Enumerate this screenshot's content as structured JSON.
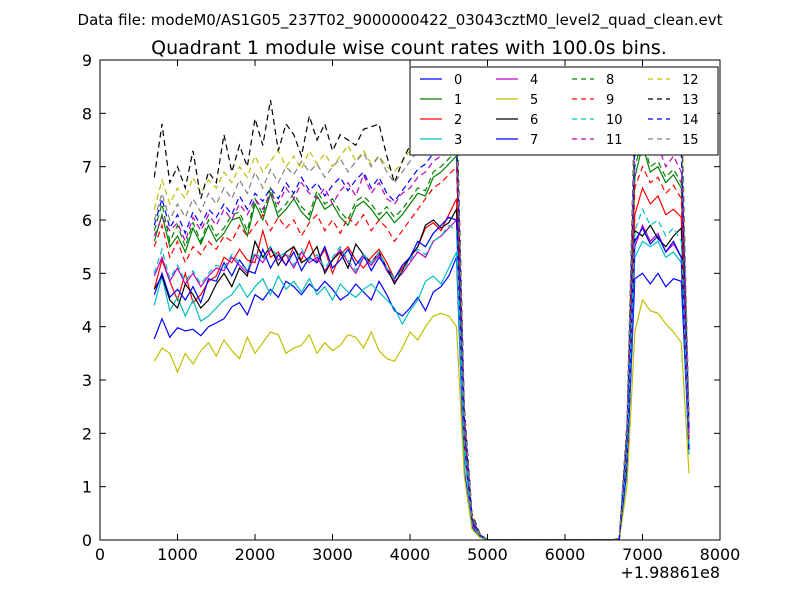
{
  "window": {
    "suptitle": "Data file: modeM0/AS1G05_237T02_9000000422_03043cztM0_level2_quad_clean.evt"
  },
  "chart_data": {
    "type": "line",
    "title": "Quadrant 1 module wise count rates with 100.0s bins.",
    "xlabel": "",
    "ylabel": "",
    "x_offset_label": "+1.98861e8",
    "xlim": [
      0,
      8000
    ],
    "ylim": [
      0,
      9
    ],
    "xticks": [
      0,
      1000,
      2000,
      3000,
      4000,
      5000,
      6000,
      7000,
      8000
    ],
    "yticks": [
      0,
      1,
      2,
      3,
      4,
      5,
      6,
      7,
      8,
      9
    ],
    "grid": false,
    "legend_position": "top-right",
    "x": [
      700,
      800,
      900,
      1000,
      1100,
      1200,
      1300,
      1400,
      1500,
      1600,
      1700,
      1800,
      1900,
      2000,
      2100,
      2200,
      2300,
      2400,
      2500,
      2600,
      2700,
      2800,
      2900,
      3000,
      3100,
      3200,
      3300,
      3400,
      3500,
      3600,
      3700,
      3800,
      3900,
      4000,
      4100,
      4200,
      4300,
      4400,
      4500,
      4600,
      4700,
      4800,
      4900,
      5000,
      5200,
      5400,
      5600,
      5800,
      6000,
      6200,
      6400,
      6600,
      6700,
      6800,
      6900,
      7000,
      7100,
      7200,
      7300,
      7400,
      7500,
      7600
    ],
    "series": [
      {
        "name": "0",
        "color": "#0000ff",
        "dash": "solid",
        "values": [
          3.77,
          4.15,
          3.8,
          3.98,
          3.92,
          3.95,
          3.83,
          4.0,
          4.07,
          4.15,
          4.37,
          4.45,
          4.22,
          4.6,
          4.5,
          4.7,
          4.55,
          4.85,
          4.75,
          4.6,
          4.8,
          4.67,
          4.85,
          4.7,
          4.5,
          4.6,
          4.8,
          4.65,
          4.5,
          4.85,
          4.6,
          4.3,
          4.2,
          4.35,
          4.55,
          4.3,
          4.65,
          4.75,
          4.95,
          5.3,
          1.3,
          0.25,
          0.05,
          0.0,
          0.0,
          0.0,
          0.0,
          0.0,
          0.0,
          0.0,
          0.0,
          0.0,
          0.02,
          1.3,
          4.9,
          5.0,
          4.8,
          5.0,
          4.75,
          4.9,
          4.85,
          1.7
        ]
      },
      {
        "name": "1",
        "color": "#008000",
        "dash": "solid",
        "values": [
          5.6,
          6.1,
          5.5,
          5.7,
          5.4,
          5.85,
          5.55,
          5.9,
          5.6,
          5.75,
          6.0,
          6.05,
          5.7,
          6.3,
          6.0,
          6.5,
          6.05,
          6.2,
          6.4,
          6.15,
          6.0,
          6.45,
          6.2,
          6.3,
          6.05,
          5.9,
          6.25,
          6.35,
          6.2,
          6.0,
          6.15,
          5.95,
          6.1,
          6.3,
          6.5,
          6.45,
          6.8,
          6.9,
          7.05,
          7.2,
          2.0,
          0.4,
          0.1,
          0.0,
          0.0,
          0.0,
          0.0,
          0.0,
          0.0,
          0.0,
          0.0,
          0.0,
          0.03,
          1.8,
          6.8,
          7.4,
          6.9,
          7.0,
          6.7,
          6.85,
          6.6,
          1.9
        ]
      },
      {
        "name": "2",
        "color": "#ff0000",
        "dash": "solid",
        "values": [
          4.7,
          5.25,
          4.85,
          4.5,
          5.0,
          4.45,
          4.6,
          4.85,
          4.95,
          5.3,
          5.2,
          5.45,
          5.25,
          5.2,
          5.8,
          5.3,
          5.4,
          5.15,
          5.5,
          5.25,
          5.6,
          5.2,
          5.45,
          5.0,
          5.35,
          5.5,
          5.25,
          5.1,
          5.3,
          5.45,
          5.2,
          4.9,
          5.1,
          5.3,
          5.5,
          5.85,
          5.95,
          5.8,
          6.1,
          6.4,
          1.9,
          0.35,
          0.08,
          0.0,
          0.0,
          0.0,
          0.0,
          0.0,
          0.0,
          0.0,
          0.0,
          0.0,
          0.02,
          1.6,
          6.1,
          6.6,
          6.3,
          6.45,
          6.1,
          6.2,
          6.05,
          1.8
        ]
      },
      {
        "name": "3",
        "color": "#00bfbf",
        "dash": "solid",
        "values": [
          4.4,
          4.95,
          4.3,
          4.55,
          4.2,
          4.5,
          4.1,
          4.2,
          4.35,
          4.5,
          4.6,
          4.8,
          4.55,
          4.75,
          4.9,
          4.6,
          4.95,
          4.7,
          4.85,
          4.65,
          4.9,
          4.6,
          4.75,
          4.5,
          4.8,
          4.65,
          4.55,
          4.7,
          4.8,
          4.65,
          4.5,
          4.35,
          4.05,
          4.3,
          4.5,
          4.85,
          4.95,
          4.8,
          5.1,
          5.4,
          1.6,
          0.3,
          0.06,
          0.0,
          0.0,
          0.0,
          0.0,
          0.0,
          0.0,
          0.0,
          0.0,
          0.0,
          0.02,
          1.4,
          5.3,
          5.6,
          5.5,
          5.6,
          5.3,
          5.4,
          5.2,
          1.6
        ]
      },
      {
        "name": "4",
        "color": "#bf00bf",
        "dash": "solid",
        "values": [
          4.95,
          5.3,
          4.85,
          5.1,
          4.8,
          5.0,
          4.75,
          4.95,
          5.1,
          5.05,
          5.3,
          5.15,
          5.0,
          5.35,
          5.2,
          5.45,
          5.25,
          5.35,
          5.1,
          5.4,
          5.2,
          5.3,
          5.05,
          5.25,
          5.45,
          5.2,
          5.0,
          5.3,
          5.15,
          5.35,
          5.05,
          4.85,
          5.0,
          5.2,
          5.4,
          5.3,
          5.6,
          5.7,
          5.85,
          6.0,
          1.8,
          0.3,
          0.07,
          0.0,
          0.0,
          0.0,
          0.0,
          0.0,
          0.0,
          0.0,
          0.0,
          0.0,
          0.02,
          1.5,
          5.5,
          5.9,
          5.6,
          5.75,
          5.4,
          5.55,
          5.3,
          1.75
        ]
      },
      {
        "name": "5",
        "color": "#bfbf00",
        "dash": "solid",
        "values": [
          3.35,
          3.6,
          3.5,
          3.15,
          3.5,
          3.3,
          3.55,
          3.7,
          3.45,
          3.75,
          3.55,
          3.4,
          3.8,
          3.5,
          3.7,
          3.9,
          3.85,
          3.5,
          3.6,
          3.65,
          3.85,
          3.5,
          3.7,
          3.55,
          3.65,
          3.85,
          3.8,
          3.6,
          3.9,
          3.55,
          3.4,
          3.35,
          3.6,
          3.9,
          3.75,
          4.0,
          4.2,
          4.25,
          4.2,
          4.0,
          1.2,
          0.2,
          0.05,
          0.0,
          0.0,
          0.0,
          0.0,
          0.0,
          0.0,
          0.0,
          0.0,
          0.0,
          0.02,
          1.0,
          3.9,
          4.5,
          4.3,
          4.25,
          4.05,
          3.9,
          3.7,
          1.25
        ]
      },
      {
        "name": "6",
        "color": "#000000",
        "dash": "solid",
        "values": [
          4.7,
          4.95,
          4.5,
          4.35,
          4.8,
          4.6,
          4.35,
          4.5,
          4.8,
          5.0,
          4.75,
          5.1,
          4.95,
          5.6,
          5.3,
          5.5,
          5.15,
          5.4,
          5.5,
          5.2,
          5.3,
          5.5,
          5.0,
          5.25,
          5.4,
          5.1,
          5.55,
          5.35,
          5.2,
          5.4,
          5.1,
          4.8,
          5.05,
          5.3,
          5.5,
          5.9,
          6.0,
          5.85,
          5.95,
          6.2,
          1.9,
          0.33,
          0.08,
          0.0,
          0.0,
          0.0,
          0.0,
          0.0,
          0.0,
          0.0,
          0.0,
          0.0,
          0.02,
          1.5,
          5.8,
          5.7,
          5.9,
          5.65,
          5.5,
          5.7,
          5.85,
          1.7
        ]
      },
      {
        "name": "7",
        "color": "#0000ff",
        "dash": "solid",
        "values": [
          4.6,
          5.0,
          4.55,
          4.7,
          4.5,
          4.75,
          4.45,
          4.9,
          4.85,
          5.2,
          4.95,
          5.25,
          5.05,
          5.0,
          5.45,
          5.1,
          5.35,
          5.15,
          5.4,
          5.05,
          5.3,
          5.2,
          5.5,
          5.1,
          5.25,
          5.45,
          5.15,
          5.35,
          5.05,
          5.3,
          5.1,
          4.9,
          5.15,
          5.3,
          5.6,
          5.5,
          5.75,
          5.9,
          6.05,
          6.0,
          1.9,
          0.33,
          0.08,
          0.0,
          0.0,
          0.0,
          0.0,
          0.0,
          0.0,
          0.0,
          0.0,
          0.0,
          0.02,
          1.5,
          5.6,
          5.85,
          5.55,
          5.7,
          5.4,
          5.6,
          5.3,
          1.7
        ]
      },
      {
        "name": "8",
        "color": "#008000",
        "dash": "dashed",
        "values": [
          5.8,
          6.3,
          5.6,
          5.9,
          5.5,
          5.95,
          5.6,
          6.0,
          5.7,
          5.85,
          6.1,
          6.15,
          5.8,
          6.4,
          6.1,
          6.6,
          6.15,
          6.3,
          6.5,
          6.25,
          6.1,
          6.55,
          6.3,
          6.4,
          6.15,
          6.0,
          6.35,
          6.45,
          6.3,
          6.1,
          6.25,
          6.05,
          6.2,
          6.4,
          6.6,
          6.55,
          6.9,
          7.0,
          7.15,
          7.3,
          2.1,
          0.4,
          0.1,
          0.0,
          0.0,
          0.0,
          0.0,
          0.0,
          0.0,
          0.0,
          0.0,
          0.0,
          0.03,
          1.9,
          7.0,
          7.5,
          7.0,
          7.1,
          6.8,
          6.95,
          6.7,
          1.95
        ]
      },
      {
        "name": "9",
        "color": "#ff0000",
        "dash": "dashed",
        "values": [
          5.5,
          5.9,
          5.3,
          5.6,
          5.2,
          5.5,
          5.35,
          5.6,
          5.45,
          5.7,
          5.6,
          5.9,
          5.7,
          5.9,
          6.1,
          5.8,
          6.05,
          5.85,
          6.0,
          5.7,
          5.95,
          6.1,
          5.8,
          6.0,
          5.75,
          6.05,
          5.9,
          6.1,
          5.8,
          6.0,
          5.85,
          5.6,
          5.8,
          6.0,
          6.2,
          6.4,
          6.6,
          6.7,
          6.85,
          7.0,
          2.0,
          0.35,
          0.09,
          0.0,
          0.0,
          0.0,
          0.0,
          0.0,
          0.0,
          0.0,
          0.0,
          0.0,
          0.03,
          1.8,
          6.6,
          7.0,
          6.7,
          6.8,
          6.5,
          6.65,
          6.4,
          1.85
        ]
      },
      {
        "name": "10",
        "color": "#00bfbf",
        "dash": "dashed",
        "values": [
          5.0,
          5.45,
          4.9,
          5.15,
          4.85,
          5.05,
          4.8,
          5.0,
          5.15,
          5.1,
          5.35,
          5.2,
          5.05,
          5.4,
          5.25,
          5.5,
          5.3,
          5.4,
          5.15,
          5.45,
          5.25,
          5.35,
          5.1,
          5.3,
          5.5,
          5.25,
          5.05,
          5.35,
          5.2,
          5.4,
          5.1,
          4.9,
          5.05,
          5.25,
          5.45,
          5.35,
          5.6,
          5.7,
          5.9,
          5.8,
          1.8,
          0.3,
          0.07,
          0.0,
          0.0,
          0.0,
          0.0,
          0.0,
          0.0,
          0.0,
          0.0,
          0.0,
          0.02,
          1.6,
          5.8,
          6.2,
          5.9,
          6.0,
          5.7,
          5.85,
          5.6,
          1.8
        ]
      },
      {
        "name": "11",
        "color": "#bf00bf",
        "dash": "dashed",
        "values": [
          5.7,
          6.05,
          5.8,
          5.95,
          5.6,
          6.05,
          5.8,
          6.1,
          5.9,
          6.2,
          6.0,
          6.3,
          6.1,
          6.4,
          6.2,
          6.5,
          6.3,
          6.6,
          6.4,
          6.7,
          6.5,
          6.4,
          6.6,
          6.3,
          6.55,
          6.7,
          6.45,
          6.85,
          6.5,
          6.7,
          6.4,
          6.3,
          6.5,
          6.6,
          6.8,
          6.9,
          7.1,
          7.2,
          7.35,
          7.5,
          2.2,
          0.4,
          0.1,
          0.0,
          0.0,
          0.0,
          0.0,
          0.0,
          0.0,
          0.0,
          0.0,
          0.0,
          0.03,
          2.0,
          7.2,
          7.6,
          7.3,
          7.4,
          7.0,
          7.2,
          6.9,
          2.0
        ]
      },
      {
        "name": "12",
        "color": "#bfbf00",
        "dash": "dashed",
        "values": [
          6.2,
          6.75,
          6.3,
          6.6,
          6.4,
          6.8,
          6.5,
          6.75,
          6.6,
          6.9,
          6.7,
          7.0,
          6.8,
          7.2,
          6.9,
          7.1,
          7.3,
          7.0,
          7.2,
          6.95,
          7.3,
          7.05,
          7.25,
          7.0,
          7.2,
          7.4,
          7.1,
          7.3,
          7.05,
          7.2,
          7.0,
          6.9,
          7.1,
          7.3,
          7.5,
          7.6,
          7.8,
          7.9,
          8.0,
          8.1,
          2.4,
          0.45,
          0.1,
          0.0,
          0.0,
          0.0,
          0.0,
          0.0,
          0.0,
          0.0,
          0.0,
          0.0,
          0.03,
          2.1,
          7.9,
          8.3,
          8.0,
          8.1,
          7.8,
          8.0,
          7.7,
          2.2
        ]
      },
      {
        "name": "13",
        "color": "#000000",
        "dash": "dashed",
        "values": [
          6.8,
          7.8,
          6.7,
          7.0,
          6.6,
          7.3,
          6.4,
          6.9,
          6.7,
          7.6,
          6.9,
          7.4,
          7.0,
          7.9,
          7.4,
          8.25,
          7.3,
          7.8,
          7.6,
          7.2,
          7.95,
          7.5,
          7.8,
          7.3,
          7.6,
          7.5,
          7.4,
          7.7,
          7.75,
          7.8,
          7.2,
          6.7,
          7.1,
          7.4,
          7.6,
          7.8,
          8.0,
          8.1,
          8.2,
          8.3,
          2.5,
          0.5,
          0.12,
          0.0,
          0.0,
          0.0,
          0.0,
          0.0,
          0.0,
          0.0,
          0.0,
          0.0,
          0.03,
          2.2,
          8.2,
          8.55,
          8.3,
          8.4,
          8.1,
          8.3,
          8.0,
          2.3
        ]
      },
      {
        "name": "14",
        "color": "#0000ff",
        "dash": "dashed",
        "values": [
          5.9,
          6.4,
          5.85,
          6.1,
          5.75,
          6.15,
          5.9,
          6.2,
          6.05,
          6.3,
          6.1,
          6.45,
          6.2,
          6.5,
          6.35,
          6.6,
          6.4,
          6.7,
          6.5,
          6.8,
          6.55,
          6.7,
          6.45,
          6.65,
          6.8,
          6.55,
          6.75,
          6.9,
          6.6,
          6.8,
          6.5,
          6.35,
          6.55,
          6.75,
          6.95,
          7.05,
          7.25,
          7.4,
          7.55,
          7.7,
          2.3,
          0.4,
          0.1,
          0.0,
          0.0,
          0.0,
          0.0,
          0.0,
          0.0,
          0.0,
          0.0,
          0.0,
          0.03,
          2.0,
          7.5,
          8.0,
          7.7,
          7.8,
          7.4,
          7.6,
          7.3,
          2.1
        ]
      },
      {
        "name": "15",
        "color": "#808080",
        "dash": "dashed",
        "values": [
          6.0,
          6.5,
          6.0,
          6.3,
          6.05,
          6.4,
          6.15,
          6.5,
          6.3,
          6.6,
          6.4,
          6.75,
          6.5,
          6.9,
          6.6,
          6.95,
          6.7,
          7.0,
          6.85,
          7.1,
          6.9,
          7.05,
          6.8,
          7.0,
          7.15,
          6.9,
          7.1,
          7.25,
          7.0,
          7.2,
          6.9,
          6.7,
          6.9,
          7.1,
          7.3,
          7.45,
          7.6,
          7.75,
          7.9,
          8.0,
          2.4,
          0.45,
          0.1,
          0.0,
          0.0,
          0.0,
          0.0,
          0.0,
          0.0,
          0.0,
          0.0,
          0.0,
          0.03,
          2.1,
          8.0,
          8.45,
          8.1,
          8.2,
          7.9,
          8.1,
          8.5,
          2.2
        ]
      }
    ]
  }
}
